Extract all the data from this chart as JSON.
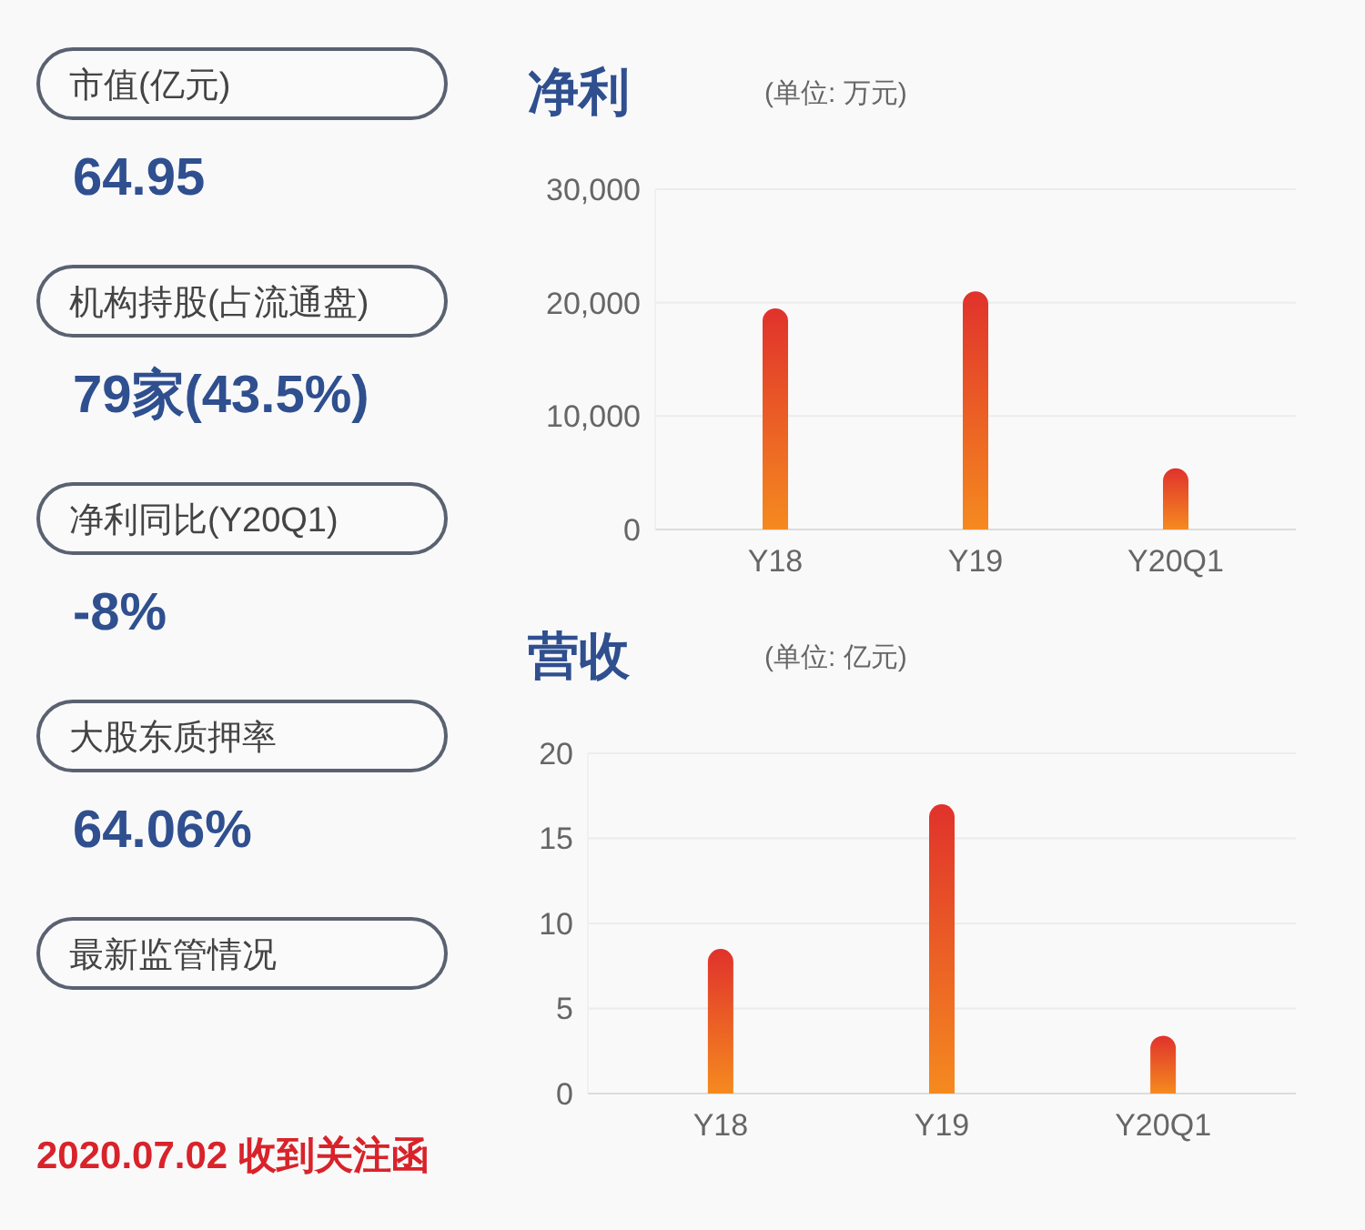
{
  "chart_data": [
    {
      "type": "other",
      "categories": [
        "市值(亿元)",
        "机构持股(占流通盘)",
        "净利同比(Y20Q1)",
        "大股东质押率",
        "最新监管情况"
      ],
      "value_labels": [
        "64.95",
        "79家(43.5%)",
        "-8%",
        "64.06%",
        null
      ],
      "annotations": [
        "2020.07.02 收到关注函"
      ]
    },
    {
      "type": "bar",
      "title": "净利",
      "subtitle": "(单位: 万元)",
      "categories": [
        "Y18",
        "Y19",
        "Y20Q1"
      ],
      "values": [
        19500,
        21000,
        5400
      ],
      "color": "#e0322c",
      "ylim": [
        0,
        30000
      ],
      "yticks": [
        {
          "value": 0,
          "label": "0"
        },
        {
          "value": 10000,
          "label": "10,000"
        },
        {
          "value": 20000,
          "label": "20,000"
        },
        {
          "value": 30000,
          "label": "30,000"
        }
      ],
      "grid": "y"
    },
    {
      "type": "bar",
      "title": "营收",
      "subtitle": "(单位: 亿元)",
      "categories": [
        "Y18",
        "Y19",
        "Y20Q1"
      ],
      "values": [
        8.5,
        17.0,
        3.4
      ],
      "color": "#e0322c",
      "ylim": [
        0,
        20
      ],
      "yticks": [
        0,
        5,
        10,
        15,
        20
      ],
      "grid": "y"
    }
  ]
}
